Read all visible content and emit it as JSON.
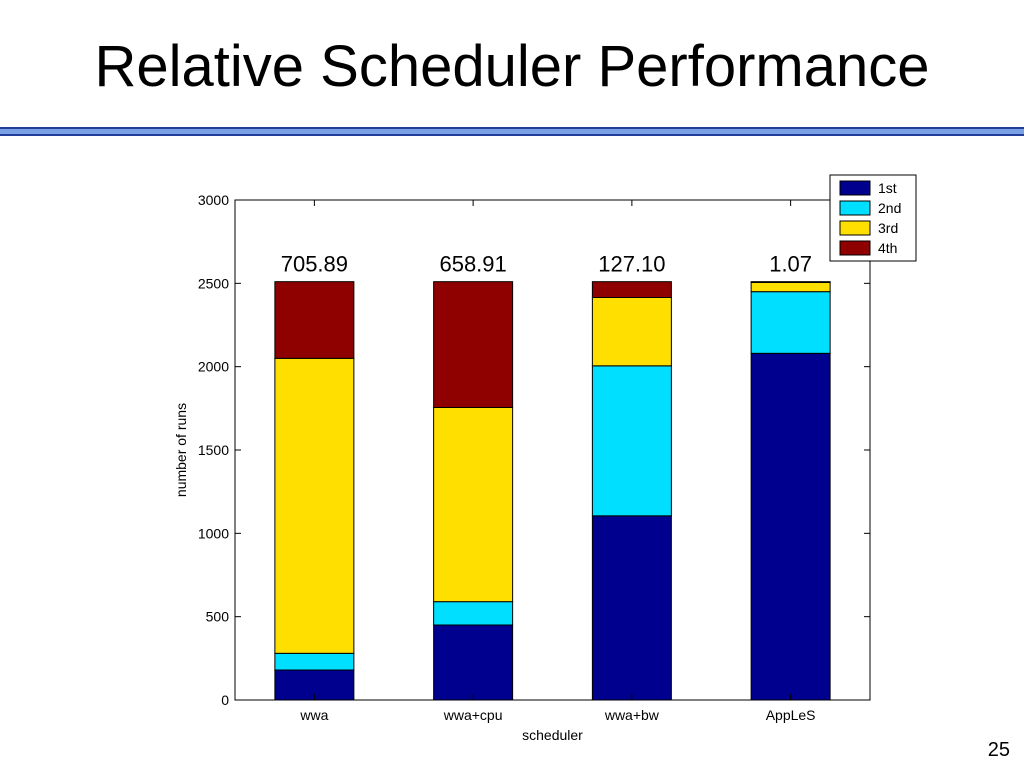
{
  "slide": {
    "title": "Relative Scheduler Performance",
    "page_number": "25"
  },
  "colors": {
    "rule_dark": "#1f3d99",
    "rule_light": "#7aa0e6"
  },
  "chart_data": {
    "type": "bar",
    "stacked": true,
    "categories": [
      "wwa",
      "wwa+cpu",
      "wwa+bw",
      "AppLeS"
    ],
    "series": [
      {
        "name": "1st",
        "color": "#00008f",
        "values": [
          180,
          450,
          1105,
          2080
        ]
      },
      {
        "name": "2nd",
        "color": "#00dfff",
        "values": [
          100,
          140,
          900,
          370
        ]
      },
      {
        "name": "3rd",
        "color": "#ffdf00",
        "values": [
          1770,
          1165,
          410,
          55
        ]
      },
      {
        "name": "4th",
        "color": "#8f0000",
        "values": [
          460,
          755,
          95,
          5
        ]
      }
    ],
    "annotations": [
      "705.89",
      "658.91",
      "127.10",
      "1.07"
    ],
    "xlabel": "scheduler",
    "ylabel": "number of runs",
    "ylim": [
      0,
      3000
    ],
    "yticks": [
      0,
      500,
      1000,
      1500,
      2000,
      2500,
      3000
    ],
    "legend_position": "top-right",
    "grid": false
  }
}
